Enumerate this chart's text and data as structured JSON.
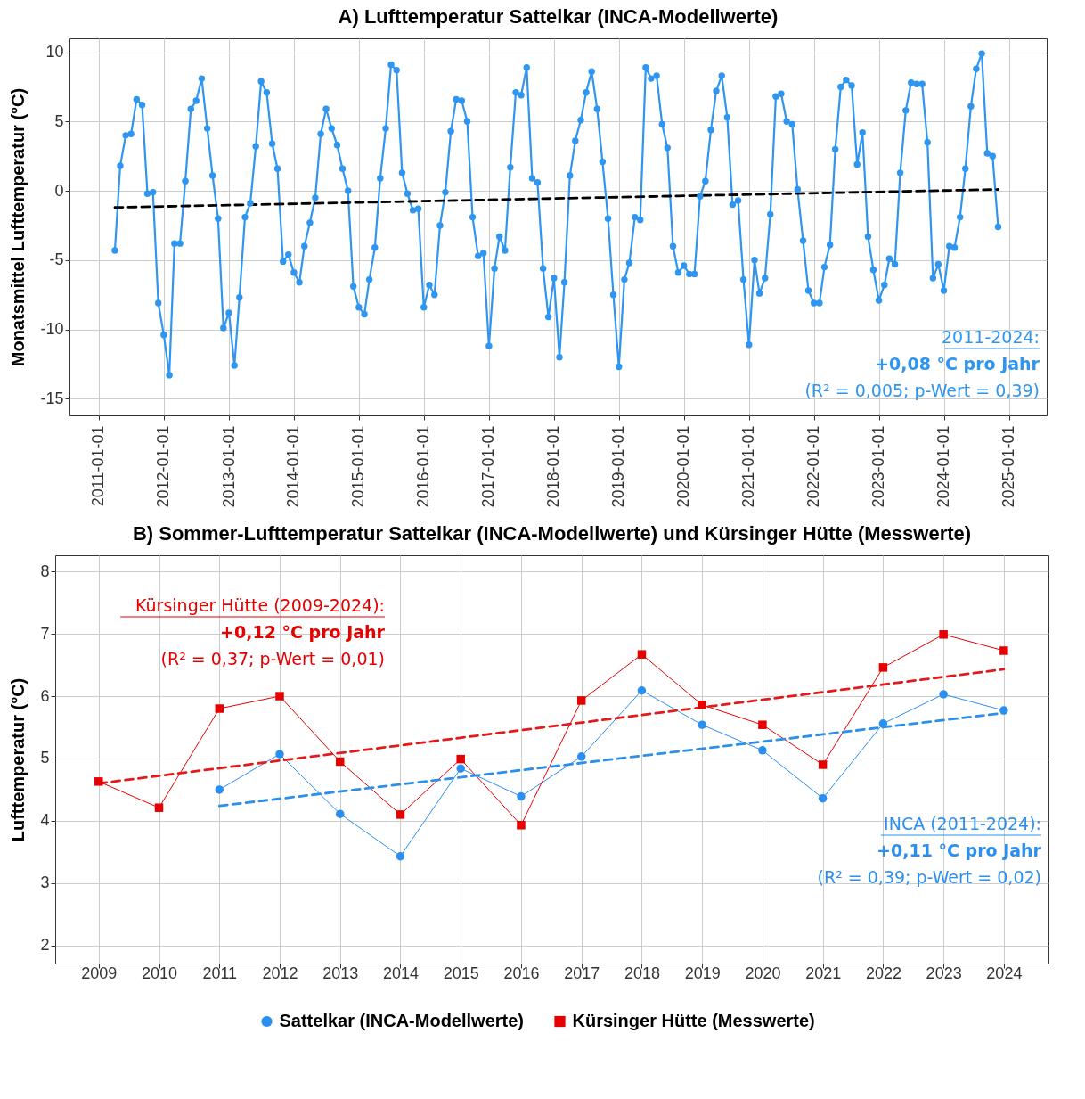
{
  "chart_data": [
    {
      "type": "line",
      "title": "A) Lufttemperatur Sattelkar (INCA-Modellwerte)",
      "ylabel": "Monatsmittel Lufttemperatur (°C)",
      "xlim": [
        "2010-07-20",
        "2025-08-01"
      ],
      "xticks": [
        "2011-01-01",
        "2012-01-01",
        "2013-01-01",
        "2014-01-01",
        "2015-01-01",
        "2016-01-01",
        "2017-01-01",
        "2018-01-01",
        "2019-01-01",
        "2020-01-01",
        "2021-01-01",
        "2022-01-01",
        "2023-01-01",
        "2024-01-01",
        "2025-01-01"
      ],
      "ylim": [
        -16.2,
        11
      ],
      "yticks": [
        -15,
        -10,
        -5,
        0,
        5,
        10
      ],
      "grid": true,
      "annotations": [
        "2011-2024:",
        "+0,08 °C pro Jahr",
        "(R² = 0,005; p-Wert = 0,39)"
      ],
      "series": [
        {
          "color": "#2e96f0",
          "marker": "circle",
          "x": [
            "2011-04",
            "2011-05",
            "2011-06",
            "2011-07",
            "2011-08",
            "2011-09",
            "2011-10",
            "2011-11",
            "2011-12",
            "2012-01",
            "2012-02",
            "2012-03",
            "2012-04",
            "2012-05",
            "2012-06",
            "2012-07",
            "2012-08",
            "2012-09",
            "2012-10",
            "2012-11",
            "2012-12",
            "2013-01",
            "2013-02",
            "2013-03",
            "2013-04",
            "2013-05",
            "2013-06",
            "2013-07",
            "2013-08",
            "2013-09",
            "2013-10",
            "2013-11",
            "2013-12",
            "2014-01",
            "2014-02",
            "2014-03",
            "2014-04",
            "2014-05",
            "2014-06",
            "2014-07",
            "2014-08",
            "2014-09",
            "2014-10",
            "2014-11",
            "2014-12",
            "2015-01",
            "2015-02",
            "2015-03",
            "2015-04",
            "2015-05",
            "2015-06",
            "2015-07",
            "2015-08",
            "2015-09",
            "2015-10",
            "2015-11",
            "2015-12",
            "2016-01",
            "2016-02",
            "2016-03",
            "2016-04",
            "2016-05",
            "2016-06",
            "2016-07",
            "2016-08",
            "2016-09",
            "2016-10",
            "2016-11",
            "2016-12",
            "2017-01",
            "2017-02",
            "2017-03",
            "2017-04",
            "2017-05",
            "2017-06",
            "2017-07",
            "2017-08",
            "2017-09",
            "2017-10",
            "2017-11",
            "2017-12",
            "2018-01",
            "2018-02",
            "2018-03",
            "2018-04",
            "2018-05",
            "2018-06",
            "2018-07",
            "2018-08",
            "2018-09",
            "2018-10",
            "2018-11",
            "2018-12",
            "2019-01",
            "2019-02",
            "2019-03",
            "2019-04",
            "2019-05",
            "2019-06",
            "2019-07",
            "2019-08",
            "2019-09",
            "2019-10",
            "2019-11",
            "2019-12",
            "2020-01",
            "2020-02",
            "2020-03",
            "2020-04",
            "2020-05",
            "2020-06",
            "2020-07",
            "2020-08",
            "2020-09",
            "2020-10",
            "2020-11",
            "2020-12",
            "2021-01",
            "2021-02",
            "2021-03",
            "2021-04",
            "2021-05",
            "2021-06",
            "2021-07",
            "2021-08",
            "2021-09",
            "2021-10",
            "2021-11",
            "2021-12",
            "2022-01",
            "2022-02",
            "2022-03",
            "2022-04",
            "2022-05",
            "2022-06",
            "2022-07",
            "2022-08",
            "2022-09",
            "2022-10",
            "2022-11",
            "2022-12",
            "2023-01",
            "2023-02",
            "2023-03",
            "2023-04",
            "2023-05",
            "2023-06",
            "2023-07",
            "2023-08",
            "2023-09",
            "2023-10",
            "2023-11",
            "2023-12",
            "2024-01",
            "2024-02",
            "2024-03",
            "2024-04",
            "2024-05",
            "2024-06",
            "2024-07",
            "2024-08",
            "2024-09",
            "2024-10",
            "2024-11"
          ],
          "values": [
            -4.3,
            1.8,
            4.0,
            4.1,
            6.6,
            6.2,
            -0.2,
            -0.1,
            -8.1,
            -10.4,
            -13.3,
            -3.8,
            -3.8,
            0.7,
            5.9,
            6.5,
            8.1,
            4.5,
            1.1,
            -2.0,
            -9.9,
            -8.8,
            -12.6,
            -7.7,
            -1.9,
            -0.9,
            3.2,
            7.9,
            7.1,
            3.4,
            1.6,
            -5.1,
            -4.6,
            -5.9,
            -6.6,
            -4.0,
            -2.3,
            -0.5,
            4.1,
            5.9,
            4.5,
            3.3,
            1.6,
            0.0,
            -6.9,
            -8.4,
            -8.9,
            -6.4,
            -4.1,
            0.9,
            4.5,
            9.1,
            8.7,
            1.3,
            -0.2,
            -1.4,
            -1.3,
            -8.4,
            -6.8,
            -7.5,
            -2.5,
            -0.1,
            4.3,
            6.6,
            6.5,
            5.0,
            -1.9,
            -4.7,
            -4.5,
            -11.2,
            -5.6,
            -3.3,
            -4.3,
            1.7,
            7.1,
            6.9,
            8.9,
            0.9,
            0.6,
            -5.6,
            -9.1,
            -6.3,
            -12.0,
            -6.6,
            1.1,
            3.6,
            5.1,
            7.1,
            8.6,
            5.9,
            2.1,
            -2.0,
            -7.5,
            -12.7,
            -6.4,
            -5.2,
            -1.9,
            -2.1,
            8.9,
            8.1,
            8.3,
            4.8,
            3.1,
            -4.0,
            -5.9,
            -5.4,
            -6.0,
            -6.0,
            -0.4,
            0.7,
            4.4,
            7.2,
            8.3,
            5.3,
            -1.0,
            -0.7,
            -6.4,
            -11.1,
            -5.0,
            -7.4,
            -6.3,
            -1.7,
            6.8,
            7.0,
            5.0,
            4.8,
            0.1,
            -3.6,
            -7.2,
            -8.1,
            -8.1,
            -5.5,
            -3.9,
            3.0,
            7.5,
            8.0,
            7.6,
            1.9,
            4.2,
            -3.3,
            -5.7,
            -7.9,
            -6.8,
            -4.9,
            -5.3,
            1.3,
            5.8,
            7.8,
            7.7,
            7.7,
            3.5,
            -6.3,
            -5.3,
            -7.2,
            -4.0,
            -4.1,
            -1.9,
            1.6,
            6.1,
            8.8,
            9.9,
            2.7,
            2.5,
            -2.6
          ]
        },
        {
          "type": "line",
          "color": "#000000",
          "line_style": "dashed",
          "marker": "none",
          "x": [
            "2011-04",
            "2024-11"
          ],
          "values": [
            -1.2,
            0.1
          ]
        }
      ]
    },
    {
      "type": "line",
      "title": "B) Sommer-Lufttemperatur Sattelkar (INCA-Modellwerte) und Kürsinger Hütte (Messwerte)",
      "ylabel": "Lufttemperatur (°C)",
      "x": [
        2009,
        2010,
        2011,
        2012,
        2013,
        2014,
        2015,
        2016,
        2017,
        2018,
        2019,
        2020,
        2021,
        2022,
        2023,
        2024
      ],
      "xlim": [
        2008.28,
        2024.74
      ],
      "xticks": [
        2009,
        2010,
        2011,
        2012,
        2013,
        2014,
        2015,
        2016,
        2017,
        2018,
        2019,
        2020,
        2021,
        2022,
        2023,
        2024
      ],
      "ylim": [
        1.71,
        8.26
      ],
      "yticks": [
        2,
        3,
        4,
        5,
        6,
        7,
        8
      ],
      "grid": true,
      "legend": "bottom",
      "annotations": [
        "Kürsinger Hütte (2009-2024):",
        "+0,12 °C pro Jahr",
        "(R² = 0,37; p-Wert = 0,01)",
        "INCA (2011-2024):",
        "+0,11 °C pro Jahr",
        "(R² = 0,39; p-Wert = 0,02)"
      ],
      "series": [
        {
          "name": "Sattelkar (INCA-Modellwerte)",
          "color": "#2b8ff0",
          "marker": "circle",
          "x": [
            2011,
            2012,
            2013,
            2014,
            2015,
            2016,
            2017,
            2018,
            2019,
            2020,
            2021,
            2022,
            2023,
            2024
          ],
          "values": [
            4.5,
            5.07,
            4.11,
            3.43,
            4.84,
            4.39,
            5.03,
            6.09,
            5.54,
            5.13,
            4.36,
            5.56,
            6.03,
            5.77
          ]
        },
        {
          "name": "Kürsinger Hütte (Messwerte)",
          "color": "#e60000",
          "marker": "square",
          "values": [
            4.63,
            4.21,
            5.8,
            6.0,
            4.95,
            4.1,
            4.99,
            3.93,
            5.93,
            6.67,
            5.86,
            5.54,
            4.9,
            6.46,
            6.99,
            6.73
          ]
        },
        {
          "type": "line",
          "color": "#2e8fe8",
          "line_style": "dashed",
          "marker": "none",
          "x": [
            2011,
            2024
          ],
          "values": [
            4.24,
            5.73
          ]
        },
        {
          "type": "line",
          "color": "#e31a1c",
          "line_style": "dashed",
          "marker": "none",
          "x": [
            2009,
            2024
          ],
          "values": [
            4.6,
            6.43
          ]
        }
      ]
    }
  ]
}
